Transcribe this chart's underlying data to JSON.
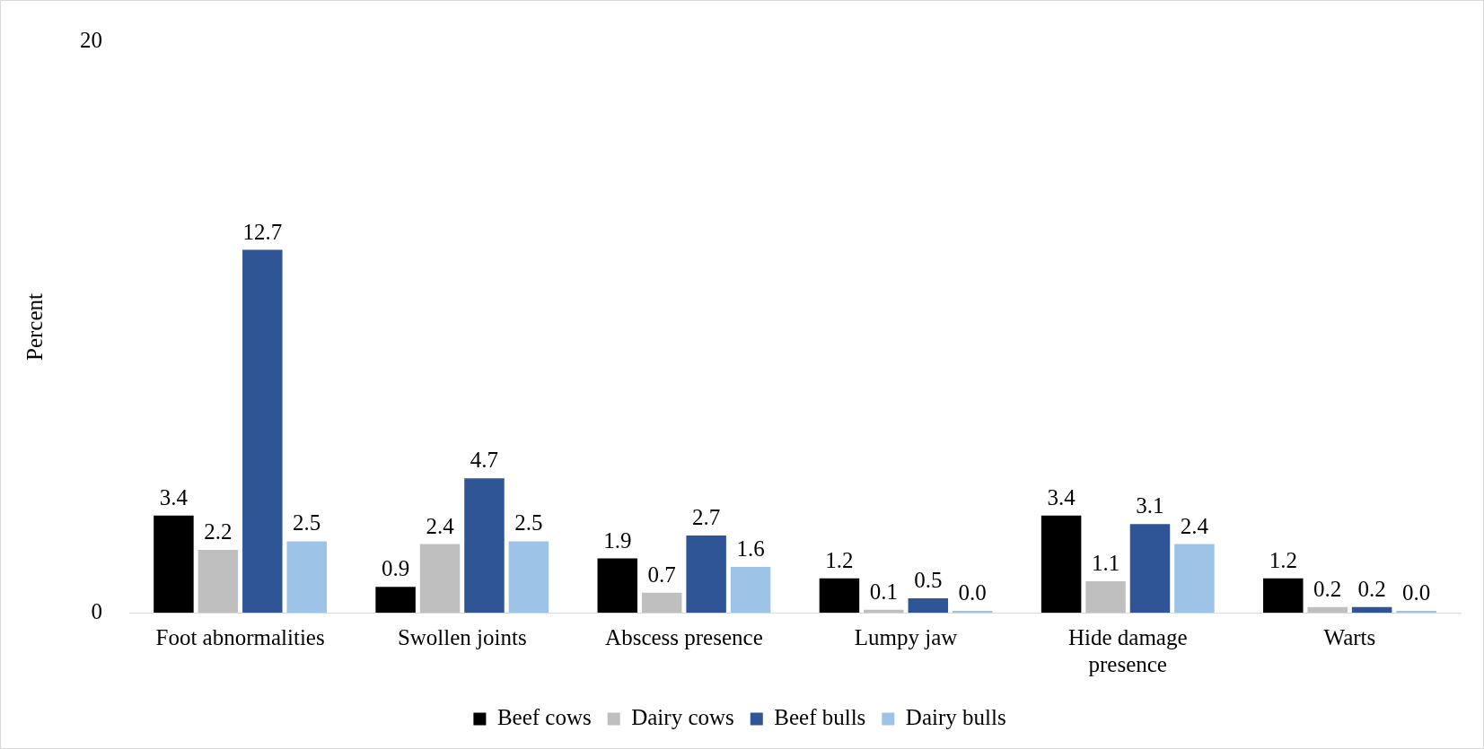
{
  "chart_data": {
    "type": "bar",
    "ylabel": "Percent",
    "categories": [
      "Foot abnormalities",
      "Swollen joints",
      "Abscess presence",
      "Lumpy jaw",
      "Hide damage presence",
      "Warts"
    ],
    "series": [
      {
        "name": "Beef cows",
        "color": "#000000",
        "values": [
          3.4,
          0.9,
          1.9,
          1.2,
          3.4,
          1.2
        ],
        "value_labels": [
          "3.4",
          "0.9",
          "1.9",
          "1.2",
          "3.4",
          "1.2"
        ]
      },
      {
        "name": "Dairy cows",
        "color": "#bfbfbf",
        "values": [
          2.2,
          2.4,
          0.7,
          0.1,
          1.1,
          0.2
        ],
        "value_labels": [
          "2.2",
          "2.4",
          "0.7",
          "0.1",
          "1.1",
          "0.2"
        ]
      },
      {
        "name": "Beef bulls",
        "color": "#2f5597",
        "values": [
          12.7,
          4.7,
          2.7,
          0.5,
          3.1,
          0.2
        ],
        "value_labels": [
          "12.7",
          "4.7",
          "2.7",
          "0.5",
          "3.1",
          "0.2"
        ]
      },
      {
        "name": "Dairy bulls",
        "color": "#9dc3e6",
        "values": [
          2.5,
          2.5,
          1.6,
          0,
          2.4,
          0
        ],
        "value_labels": [
          "2.5",
          "2.5",
          "1.6",
          "0.0",
          "2.4",
          "0.0"
        ]
      }
    ],
    "ylim": [
      0,
      20
    ],
    "yticks": [
      0,
      20
    ],
    "grid": false,
    "legend": "bottom"
  }
}
